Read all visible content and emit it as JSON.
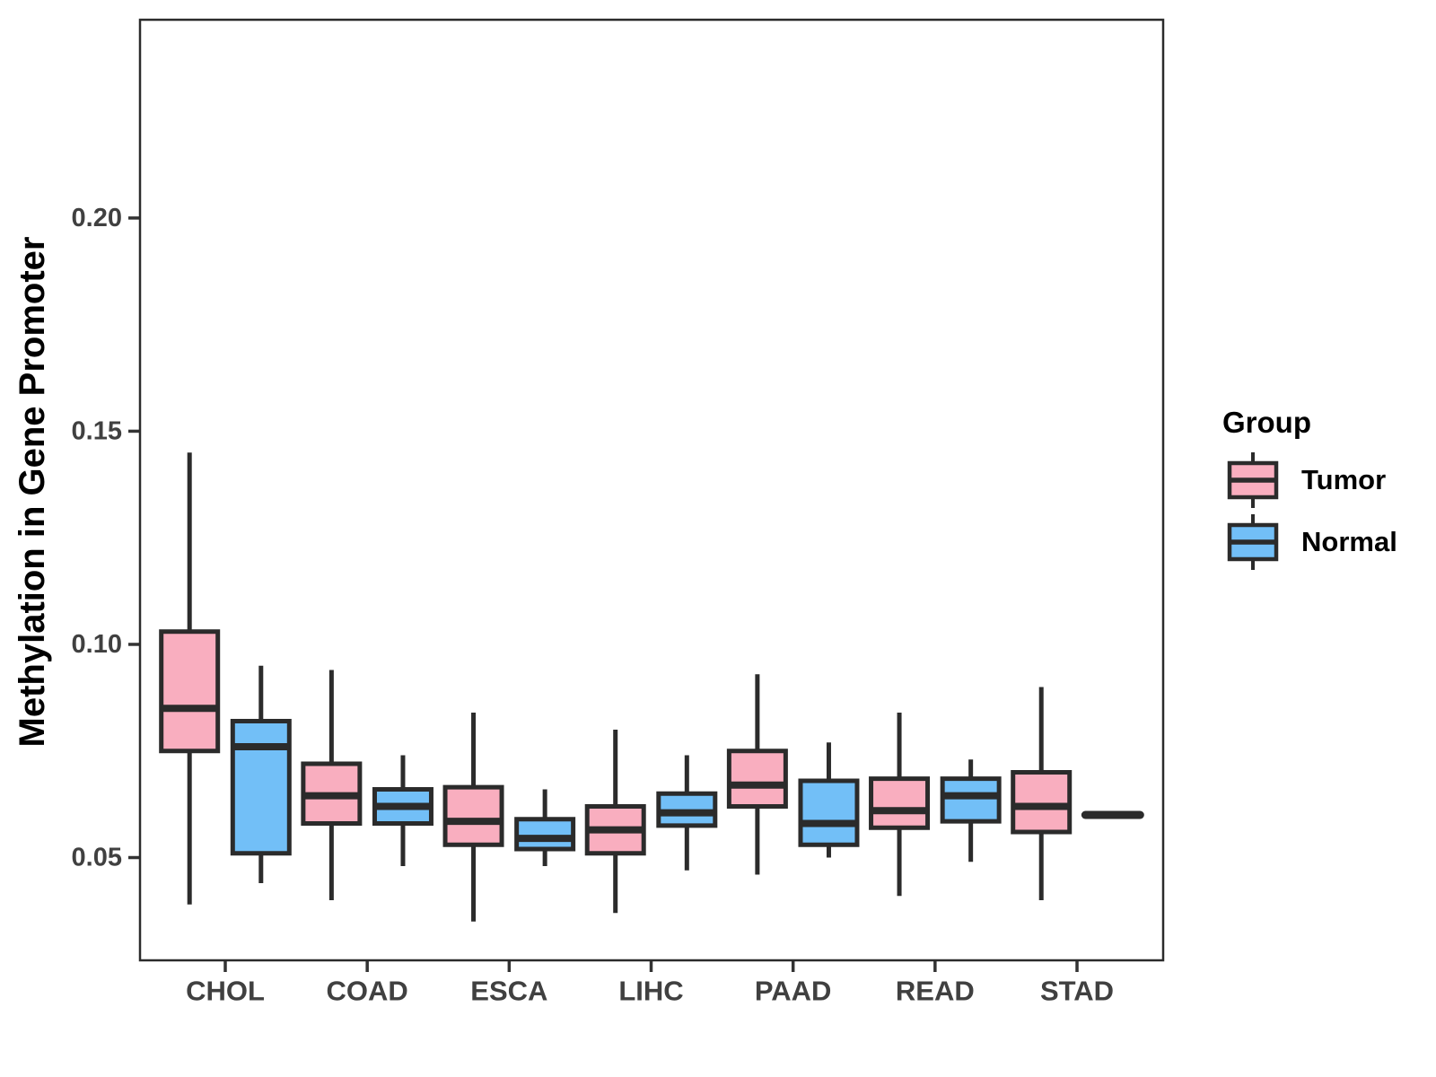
{
  "figure": {
    "y_axis_title": "Methylation in Gene Promoter",
    "legend": {
      "title": "Group",
      "items": [
        {
          "label": "Tumor",
          "color": "#F9AEBF"
        },
        {
          "label": "Normal",
          "color": "#72BFF7"
        }
      ]
    }
  },
  "style": {
    "background": "#FFFFFF",
    "box_line": "#2B2B2B",
    "panel_border": "#2B2B2B",
    "tick_mark": "#333333",
    "tick_text": "#404040"
  },
  "chart_data": {
    "type": "boxplot",
    "title": "",
    "xlabel": "",
    "ylabel": "Methylation in Gene Promoter",
    "categories": [
      "CHOL",
      "COAD",
      "ESCA",
      "LIHC",
      "PAAD",
      "READ",
      "STAD"
    ],
    "ylim": [
      0.0259,
      0.2465
    ],
    "yticks": {
      "values": [
        0.05,
        0.1,
        0.15,
        0.2
      ],
      "labels": [
        "0.05",
        "0.10",
        "0.15",
        "0.20"
      ]
    },
    "grid": false,
    "legend_position": "right",
    "series": [
      {
        "name": "Tumor",
        "fill": "#F9AEBF",
        "boxes": [
          {
            "category": "CHOL",
            "whisker_low": 0.039,
            "q1": 0.075,
            "median": 0.085,
            "q3": 0.103,
            "whisker_high": 0.145
          },
          {
            "category": "COAD",
            "whisker_low": 0.04,
            "q1": 0.058,
            "median": 0.0645,
            "q3": 0.072,
            "whisker_high": 0.094
          },
          {
            "category": "ESCA",
            "whisker_low": 0.035,
            "q1": 0.053,
            "median": 0.0585,
            "q3": 0.0665,
            "whisker_high": 0.084
          },
          {
            "category": "LIHC",
            "whisker_low": 0.037,
            "q1": 0.051,
            "median": 0.0565,
            "q3": 0.062,
            "whisker_high": 0.08
          },
          {
            "category": "PAAD",
            "whisker_low": 0.046,
            "q1": 0.062,
            "median": 0.067,
            "q3": 0.075,
            "whisker_high": 0.093
          },
          {
            "category": "READ",
            "whisker_low": 0.041,
            "q1": 0.057,
            "median": 0.061,
            "q3": 0.0685,
            "whisker_high": 0.084
          },
          {
            "category": "STAD",
            "whisker_low": 0.04,
            "q1": 0.056,
            "median": 0.062,
            "q3": 0.07,
            "whisker_high": 0.09
          }
        ]
      },
      {
        "name": "Normal",
        "fill": "#72BFF7",
        "boxes": [
          {
            "category": "CHOL",
            "whisker_low": 0.044,
            "q1": 0.051,
            "median": 0.076,
            "q3": 0.082,
            "whisker_high": 0.095
          },
          {
            "category": "COAD",
            "whisker_low": 0.048,
            "q1": 0.058,
            "median": 0.062,
            "q3": 0.066,
            "whisker_high": 0.074
          },
          {
            "category": "ESCA",
            "whisker_low": 0.048,
            "q1": 0.052,
            "median": 0.0545,
            "q3": 0.059,
            "whisker_high": 0.066
          },
          {
            "category": "LIHC",
            "whisker_low": 0.047,
            "q1": 0.0575,
            "median": 0.0605,
            "q3": 0.065,
            "whisker_high": 0.074
          },
          {
            "category": "PAAD",
            "whisker_low": 0.05,
            "q1": 0.053,
            "median": 0.058,
            "q3": 0.068,
            "whisker_high": 0.077
          },
          {
            "category": "READ",
            "whisker_low": 0.049,
            "q1": 0.0585,
            "median": 0.0645,
            "q3": 0.0685,
            "whisker_high": 0.073
          },
          {
            "category": "STAD",
            "median_only": true,
            "median": 0.06
          }
        ]
      }
    ]
  }
}
